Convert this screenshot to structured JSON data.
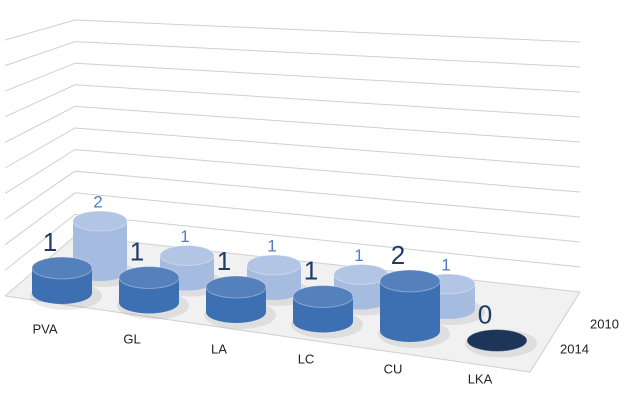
{
  "chart_data": {
    "type": "bar3d",
    "categories": [
      "PVA",
      "GL",
      "LA",
      "LC",
      "CU",
      "LKA"
    ],
    "series": [
      {
        "name": "2014",
        "color": "#3d6fb3",
        "values": [
          1,
          1,
          1,
          1,
          2,
          0
        ]
      },
      {
        "name": "2010",
        "color": "#a6bbe0",
        "values": [
          2,
          1,
          1,
          1,
          1,
          null
        ]
      }
    ],
    "ylim": [
      0,
      10
    ],
    "yticks": [
      0,
      1,
      2,
      3,
      4,
      5,
      6,
      7,
      8,
      9,
      10
    ],
    "grid": true
  }
}
